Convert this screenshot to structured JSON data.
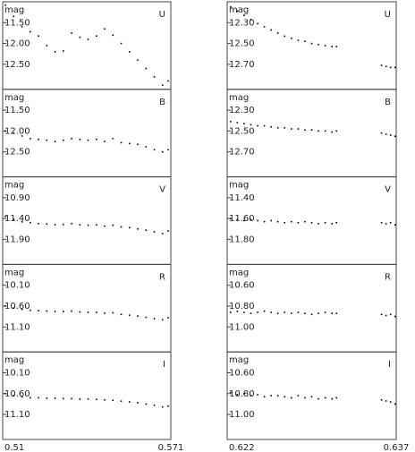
{
  "chart_data": [
    {
      "type": "scatter",
      "title": "U",
      "ylabel": "mag",
      "y_inverted": true,
      "color": "#000000",
      "x": [
        0.511,
        0.514,
        0.517,
        0.52,
        0.523,
        0.526,
        0.529,
        0.532,
        0.535,
        0.538,
        0.541,
        0.544,
        0.547,
        0.55,
        0.553,
        0.556,
        0.559,
        0.562,
        0.565,
        0.568,
        0.57
      ],
      "values": [
        11.08,
        11.35,
        11.6,
        11.72,
        11.82,
        12.05,
        12.2,
        12.18,
        11.75,
        11.85,
        11.9,
        11.82,
        11.65,
        11.8,
        12.0,
        12.2,
        12.4,
        12.6,
        12.8,
        13.0,
        12.9
      ],
      "xlim": [
        0.51,
        0.571
      ],
      "ylim": [
        11.0,
        13.1
      ],
      "yticks": [
        {
          "value": 11.5,
          "label": "11.50"
        },
        {
          "value": 12.0,
          "label": "12.00"
        },
        {
          "value": 12.5,
          "label": "12.50"
        }
      ]
    },
    {
      "type": "scatter",
      "title": "U",
      "ylabel": "mag",
      "y_inverted": true,
      "color": "#000000",
      "x": [
        0.6223,
        0.6229,
        0.6235,
        0.6241,
        0.6247,
        0.6253,
        0.6259,
        0.6265,
        0.6271,
        0.6277,
        0.6283,
        0.6289,
        0.6295,
        0.6301,
        0.6307,
        0.6313,
        0.6317,
        0.6357,
        0.6361,
        0.6365,
        0.6369
      ],
      "values": [
        12.15,
        12.19,
        12.23,
        12.27,
        12.31,
        12.34,
        12.37,
        12.4,
        12.43,
        12.45,
        12.47,
        12.48,
        12.5,
        12.51,
        12.52,
        12.53,
        12.53,
        12.71,
        12.72,
        12.73,
        12.73
      ],
      "xlim": [
        0.622,
        0.637
      ],
      "ylim": [
        12.1,
        12.94
      ],
      "yticks": [
        {
          "value": 12.3,
          "label": "12.30"
        },
        {
          "value": 12.5,
          "label": "12.50"
        },
        {
          "value": 12.7,
          "label": "12.70"
        }
      ]
    },
    {
      "type": "scatter",
      "title": "B",
      "ylabel": "mag",
      "y_inverted": true,
      "color": "#000000",
      "x": [
        0.511,
        0.514,
        0.517,
        0.52,
        0.523,
        0.526,
        0.529,
        0.532,
        0.535,
        0.538,
        0.541,
        0.544,
        0.547,
        0.55,
        0.553,
        0.556,
        0.559,
        0.562,
        0.565,
        0.568,
        0.57
      ],
      "values": [
        12.0,
        12.05,
        12.12,
        12.18,
        12.2,
        12.22,
        12.25,
        12.22,
        12.18,
        12.2,
        12.22,
        12.2,
        12.25,
        12.18,
        12.28,
        12.3,
        12.32,
        12.38,
        12.45,
        12.5,
        12.45
      ],
      "xlim": [
        0.51,
        0.571
      ],
      "ylim": [
        11.0,
        13.1
      ],
      "yticks": [
        {
          "value": 11.5,
          "label": "11.50"
        },
        {
          "value": 12.0,
          "label": "12.00"
        },
        {
          "value": 12.5,
          "label": "12.50"
        }
      ]
    },
    {
      "type": "scatter",
      "title": "B",
      "ylabel": "mag",
      "y_inverted": true,
      "color": "#000000",
      "x": [
        0.6223,
        0.6229,
        0.6235,
        0.6241,
        0.6247,
        0.6253,
        0.6259,
        0.6265,
        0.6271,
        0.6277,
        0.6283,
        0.6289,
        0.6295,
        0.6301,
        0.6307,
        0.6313,
        0.6317,
        0.6357,
        0.6361,
        0.6365,
        0.6369
      ],
      "values": [
        12.41,
        12.42,
        12.43,
        12.44,
        12.45,
        12.45,
        12.46,
        12.47,
        12.47,
        12.48,
        12.48,
        12.49,
        12.49,
        12.5,
        12.5,
        12.51,
        12.5,
        12.52,
        12.53,
        12.54,
        12.55
      ],
      "xlim": [
        0.622,
        0.637
      ],
      "ylim": [
        12.1,
        12.94
      ],
      "yticks": [
        {
          "value": 12.3,
          "label": "12.30"
        },
        {
          "value": 12.5,
          "label": "12.50"
        },
        {
          "value": 12.7,
          "label": "12.70"
        }
      ]
    },
    {
      "type": "scatter",
      "title": "V",
      "ylabel": "mag",
      "y_inverted": true,
      "color": "#000000",
      "x": [
        0.511,
        0.514,
        0.517,
        0.52,
        0.523,
        0.526,
        0.529,
        0.532,
        0.535,
        0.538,
        0.541,
        0.544,
        0.547,
        0.55,
        0.553,
        0.556,
        0.559,
        0.562,
        0.565,
        0.568,
        0.57
      ],
      "values": [
        11.35,
        11.42,
        11.48,
        11.5,
        11.52,
        11.53,
        11.55,
        11.54,
        11.52,
        11.55,
        11.56,
        11.55,
        11.58,
        11.56,
        11.6,
        11.62,
        11.65,
        11.68,
        11.72,
        11.76,
        11.7
      ],
      "xlim": [
        0.51,
        0.571
      ],
      "ylim": [
        10.4,
        12.5
      ],
      "yticks": [
        {
          "value": 10.9,
          "label": "10.90"
        },
        {
          "value": 11.4,
          "label": "11.40"
        },
        {
          "value": 11.9,
          "label": "11.90"
        }
      ]
    },
    {
      "type": "scatter",
      "title": "V",
      "ylabel": "mag",
      "y_inverted": true,
      "color": "#000000",
      "x": [
        0.6223,
        0.6229,
        0.6235,
        0.6241,
        0.6247,
        0.6253,
        0.6259,
        0.6265,
        0.6271,
        0.6277,
        0.6283,
        0.6289,
        0.6295,
        0.6301,
        0.6307,
        0.6313,
        0.6317,
        0.6357,
        0.6361,
        0.6365,
        0.6369
      ],
      "values": [
        11.6,
        11.61,
        11.62,
        11.61,
        11.62,
        11.63,
        11.62,
        11.63,
        11.64,
        11.63,
        11.64,
        11.63,
        11.64,
        11.65,
        11.64,
        11.65,
        11.64,
        11.64,
        11.65,
        11.64,
        11.66
      ],
      "xlim": [
        0.622,
        0.637
      ],
      "ylim": [
        11.2,
        12.04
      ],
      "yticks": [
        {
          "value": 11.4,
          "label": "11.40"
        },
        {
          "value": 11.6,
          "label": "11.60"
        },
        {
          "value": 11.8,
          "label": "11.80"
        }
      ]
    },
    {
      "type": "scatter",
      "title": "R",
      "ylabel": "mag",
      "y_inverted": true,
      "color": "#000000",
      "x": [
        0.511,
        0.514,
        0.517,
        0.52,
        0.523,
        0.526,
        0.529,
        0.532,
        0.535,
        0.538,
        0.541,
        0.544,
        0.547,
        0.55,
        0.553,
        0.556,
        0.559,
        0.562,
        0.565,
        0.568,
        0.57
      ],
      "values": [
        10.6,
        10.65,
        10.68,
        10.7,
        10.71,
        10.72,
        10.73,
        10.73,
        10.72,
        10.74,
        10.75,
        10.75,
        10.77,
        10.76,
        10.8,
        10.82,
        10.84,
        10.87,
        10.9,
        10.93,
        10.88
      ],
      "xlim": [
        0.51,
        0.571
      ],
      "ylim": [
        9.6,
        11.7
      ],
      "yticks": [
        {
          "value": 10.1,
          "label": "10.10"
        },
        {
          "value": 10.6,
          "label": "10.60"
        },
        {
          "value": 11.1,
          "label": "11.10"
        }
      ]
    },
    {
      "type": "scatter",
      "title": "R",
      "ylabel": "mag",
      "y_inverted": true,
      "color": "#000000",
      "x": [
        0.6223,
        0.6229,
        0.6235,
        0.6241,
        0.6247,
        0.6253,
        0.6259,
        0.6265,
        0.6271,
        0.6277,
        0.6283,
        0.6289,
        0.6295,
        0.6301,
        0.6307,
        0.6313,
        0.6317,
        0.6357,
        0.6361,
        0.6365,
        0.6369
      ],
      "values": [
        10.86,
        10.85,
        10.86,
        10.87,
        10.86,
        10.85,
        10.86,
        10.87,
        10.86,
        10.87,
        10.86,
        10.87,
        10.88,
        10.87,
        10.86,
        10.87,
        10.87,
        10.88,
        10.89,
        10.88,
        10.9
      ],
      "xlim": [
        0.622,
        0.637
      ],
      "ylim": [
        10.4,
        11.24
      ],
      "yticks": [
        {
          "value": 10.6,
          "label": "10.60"
        },
        {
          "value": 10.8,
          "label": "10.80"
        },
        {
          "value": 11.0,
          "label": "11.00"
        }
      ]
    },
    {
      "type": "scatter",
      "title": "I",
      "ylabel": "mag",
      "y_inverted": true,
      "color": "#000000",
      "x": [
        0.511,
        0.514,
        0.517,
        0.52,
        0.523,
        0.526,
        0.529,
        0.532,
        0.535,
        0.538,
        0.541,
        0.544,
        0.547,
        0.55,
        0.553,
        0.556,
        0.559,
        0.562,
        0.565,
        0.568,
        0.57
      ],
      "values": [
        10.6,
        10.65,
        10.68,
        10.7,
        10.7,
        10.71,
        10.71,
        10.72,
        10.72,
        10.73,
        10.73,
        10.74,
        10.75,
        10.76,
        10.78,
        10.8,
        10.82,
        10.85,
        10.88,
        10.92,
        10.9
      ],
      "xlim": [
        0.51,
        0.571
      ],
      "ylim": [
        9.6,
        11.7
      ],
      "yticks": [
        {
          "value": 10.1,
          "label": "10.10"
        },
        {
          "value": 10.6,
          "label": "10.60"
        },
        {
          "value": 11.1,
          "label": "11.10"
        }
      ],
      "xticks": [
        0.51,
        0.571
      ]
    },
    {
      "type": "scatter",
      "title": "I",
      "ylabel": "mag",
      "y_inverted": true,
      "color": "#000000",
      "x": [
        0.6223,
        0.6229,
        0.6235,
        0.6241,
        0.6247,
        0.6253,
        0.6259,
        0.6265,
        0.6271,
        0.6277,
        0.6283,
        0.6289,
        0.6295,
        0.6301,
        0.6307,
        0.6313,
        0.6317,
        0.6357,
        0.6361,
        0.6365,
        0.6369
      ],
      "values": [
        10.79,
        10.81,
        10.8,
        10.82,
        10.81,
        10.83,
        10.82,
        10.82,
        10.83,
        10.84,
        10.82,
        10.84,
        10.83,
        10.85,
        10.84,
        10.85,
        10.84,
        10.86,
        10.87,
        10.88,
        10.9
      ],
      "xlim": [
        0.622,
        0.637
      ],
      "ylim": [
        10.4,
        11.24
      ],
      "yticks": [
        {
          "value": 10.6,
          "label": "10.60"
        },
        {
          "value": 10.8,
          "label": "10.80"
        },
        {
          "value": 11.0,
          "label": "11.00"
        }
      ],
      "xticks": [
        0.622,
        0.637
      ]
    }
  ]
}
